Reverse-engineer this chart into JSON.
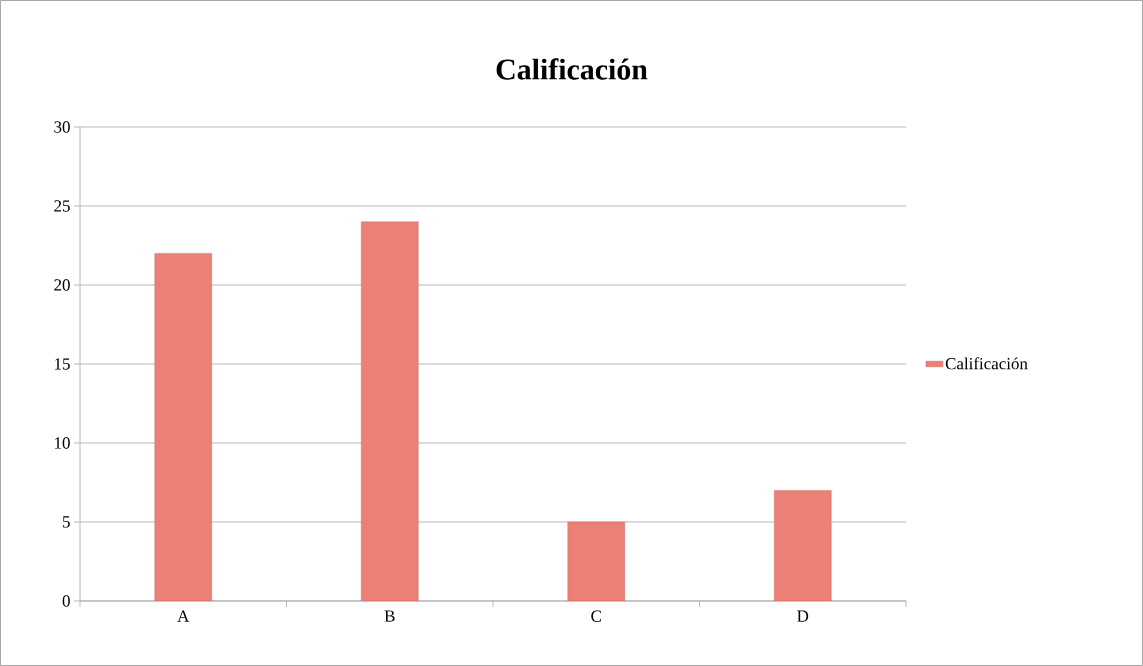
{
  "chart_data": {
    "type": "bar",
    "title": "Calificación",
    "categories": [
      "A",
      "B",
      "C",
      "D"
    ],
    "series": [
      {
        "name": "Calificación",
        "color": "#ec7f76",
        "values": [
          22,
          24,
          5,
          7
        ]
      }
    ],
    "ylim": [
      0,
      30
    ],
    "yticks": [
      0,
      5,
      10,
      15,
      20,
      25,
      30
    ],
    "grid": "y",
    "legend": "right"
  }
}
